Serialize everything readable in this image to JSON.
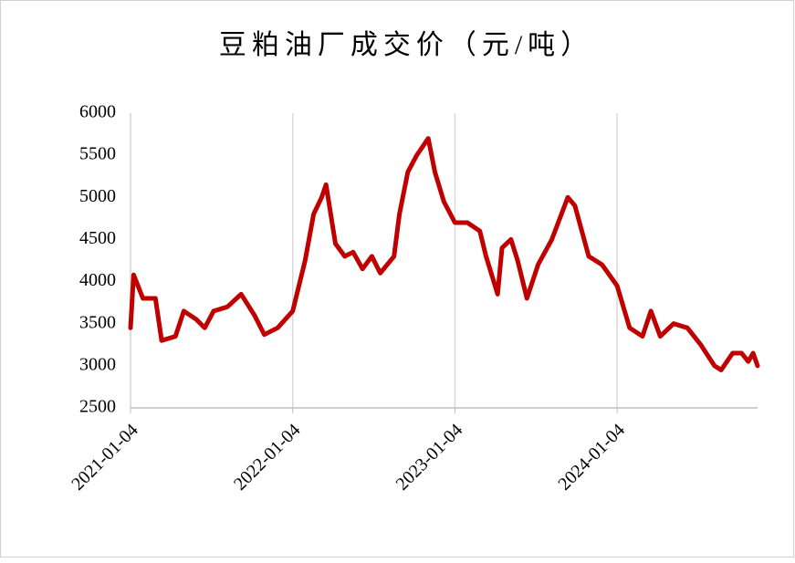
{
  "chart_data": {
    "type": "line",
    "title": "豆粕油厂成交价（元/吨）",
    "x": [
      "2021-01-04",
      "2021-01-11",
      "2021-02-01",
      "2021-03-01",
      "2021-03-15",
      "2021-04-15",
      "2021-05-04",
      "2021-06-01",
      "2021-06-20",
      "2021-07-10",
      "2021-08-10",
      "2021-09-10",
      "2021-10-10",
      "2021-11-01",
      "2021-12-01",
      "2022-01-04",
      "2022-02-01",
      "2022-02-20",
      "2022-03-10",
      "2022-03-20",
      "2022-04-10",
      "2022-05-01",
      "2022-05-20",
      "2022-06-10",
      "2022-07-01",
      "2022-07-20",
      "2022-08-20",
      "2022-09-01",
      "2022-09-20",
      "2022-10-10",
      "2022-11-05",
      "2022-11-20",
      "2022-12-10",
      "2023-01-04",
      "2023-02-01",
      "2023-03-01",
      "2023-03-15",
      "2023-04-10",
      "2023-04-20",
      "2023-05-10",
      "2023-05-25",
      "2023-06-15",
      "2023-07-10",
      "2023-08-10",
      "2023-09-15",
      "2023-10-01",
      "2023-11-01",
      "2023-12-01",
      "2024-01-04",
      "2024-02-01",
      "2024-03-01",
      "2024-03-20",
      "2024-04-10",
      "2024-05-10",
      "2024-06-10",
      "2024-07-10",
      "2024-08-10",
      "2024-08-25",
      "2024-09-20",
      "2024-10-10",
      "2024-10-25",
      "2024-11-05",
      "2024-11-15"
    ],
    "values": [
      3450,
      4080,
      3800,
      3800,
      3300,
      3350,
      3650,
      3550,
      3450,
      3650,
      3700,
      3850,
      3600,
      3370,
      3450,
      3650,
      4250,
      4800,
      5000,
      5150,
      4450,
      4300,
      4350,
      4150,
      4300,
      4100,
      4300,
      4800,
      5300,
      5500,
      5700,
      5300,
      4950,
      4700,
      4700,
      4600,
      4300,
      3850,
      4400,
      4500,
      4250,
      3800,
      4200,
      4500,
      5000,
      4900,
      4300,
      4200,
      3950,
      3450,
      3350,
      3650,
      3350,
      3500,
      3450,
      3250,
      3000,
      2950,
      3150,
      3150,
      3050,
      3150,
      3000
    ],
    "color": "#c00000",
    "xlim": [
      "2021-01-04",
      "2024-11-15"
    ],
    "xticks": [
      "2021-01-04",
      "2022-01-04",
      "2023-01-04",
      "2024-01-04"
    ],
    "ylim": [
      2500,
      6000
    ],
    "yticks": [
      2500,
      3000,
      3500,
      4000,
      4500,
      5000,
      5500,
      6000
    ],
    "grid": true
  }
}
